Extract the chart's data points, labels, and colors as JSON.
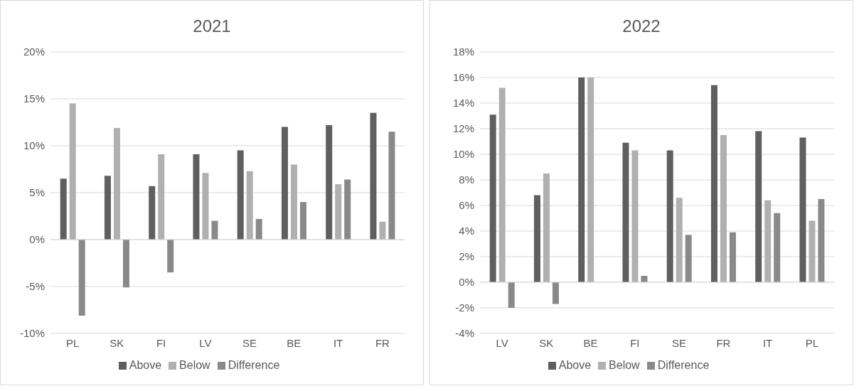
{
  "chart_data": [
    {
      "type": "bar",
      "title": "2021",
      "categories": [
        "PL",
        "SK",
        "FI",
        "LV",
        "SE",
        "BE",
        "IT",
        "FR"
      ],
      "series": [
        {
          "name": "Above",
          "color": "#5f5f5f",
          "values": [
            6.5,
            6.8,
            5.7,
            9.1,
            9.5,
            12.0,
            12.2,
            13.5
          ]
        },
        {
          "name": "Below",
          "color": "#b0b0b0",
          "values": [
            14.5,
            11.9,
            9.1,
            7.1,
            7.3,
            8.0,
            5.9,
            1.9
          ]
        },
        {
          "name": "Difference",
          "color": "#898989",
          "values": [
            -8.1,
            -5.1,
            -3.5,
            2.0,
            2.2,
            4.0,
            6.4,
            11.5
          ]
        }
      ],
      "ylim": [
        -10,
        20
      ],
      "yticks": [
        {
          "value": -10,
          "label": "-10%"
        },
        {
          "value": -5,
          "label": "-5%"
        },
        {
          "value": 0,
          "label": "0%"
        },
        {
          "value": 5,
          "label": "5%"
        },
        {
          "value": 10,
          "label": "10%"
        },
        {
          "value": 15,
          "label": "15%"
        },
        {
          "value": 20,
          "label": "20%"
        }
      ],
      "grid": "y",
      "legend": "bottom"
    },
    {
      "type": "bar",
      "title": "2022",
      "categories": [
        "LV",
        "SK",
        "BE",
        "FI",
        "SE",
        "FR",
        "IT",
        "PL"
      ],
      "series": [
        {
          "name": "Above",
          "color": "#5f5f5f",
          "values": [
            13.1,
            6.8,
            16.0,
            10.9,
            10.3,
            15.4,
            11.8,
            11.3
          ]
        },
        {
          "name": "Below",
          "color": "#b0b0b0",
          "values": [
            15.2,
            8.5,
            16.0,
            10.3,
            6.6,
            11.5,
            6.4,
            4.8
          ]
        },
        {
          "name": "Difference",
          "color": "#898989",
          "values": [
            -2.0,
            -1.7,
            0,
            0.5,
            3.7,
            3.9,
            5.4,
            6.5
          ]
        }
      ],
      "ylim": [
        -4,
        18
      ],
      "yticks": [
        {
          "value": -4,
          "label": "-4%"
        },
        {
          "value": -2,
          "label": "-2%"
        },
        {
          "value": 0,
          "label": "0%"
        },
        {
          "value": 2,
          "label": "2%"
        },
        {
          "value": 4,
          "label": "4%"
        },
        {
          "value": 6,
          "label": "6%"
        },
        {
          "value": 8,
          "label": "8%"
        },
        {
          "value": 10,
          "label": "10%"
        },
        {
          "value": 12,
          "label": "12%"
        },
        {
          "value": 14,
          "label": "14%"
        },
        {
          "value": 16,
          "label": "16%"
        },
        {
          "value": 18,
          "label": "18%"
        }
      ],
      "grid": "y",
      "legend": "bottom"
    }
  ]
}
